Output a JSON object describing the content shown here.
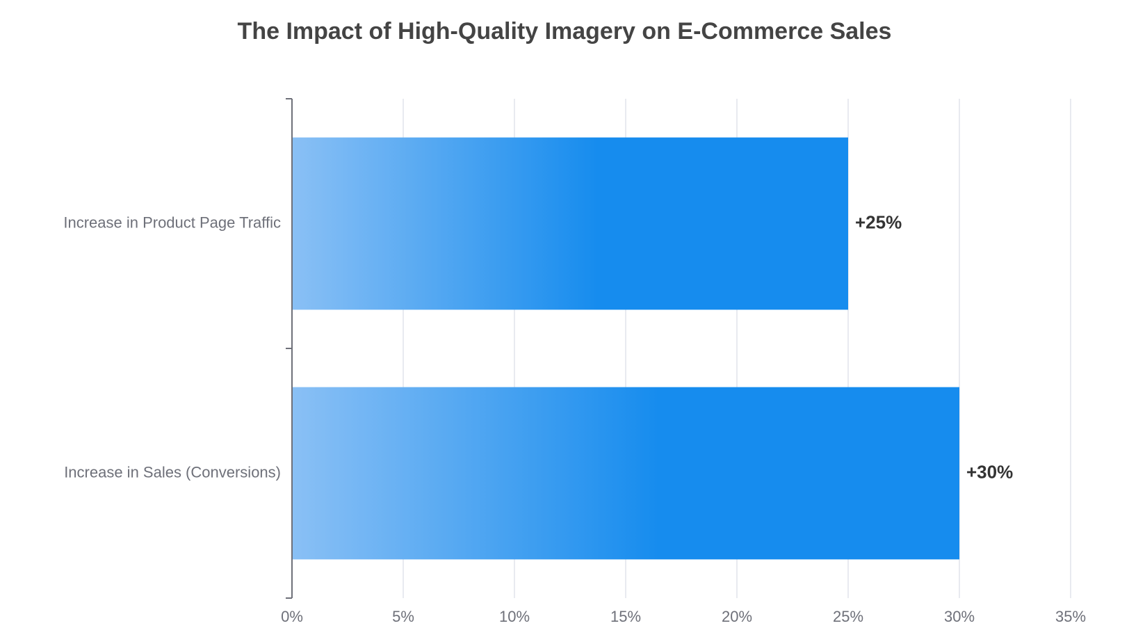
{
  "chart_data": {
    "type": "bar",
    "orientation": "horizontal",
    "title": "The Impact of High-Quality Imagery on E-Commerce Sales",
    "xlabel": "",
    "ylabel": "",
    "categories": [
      "Increase in Product Page Traffic",
      "Increase in Sales (Conversions)"
    ],
    "values": [
      25,
      30
    ],
    "data_labels": [
      "+25%",
      "+30%"
    ],
    "xlim": [
      0,
      35
    ],
    "x_ticks": [
      0,
      5,
      10,
      15,
      20,
      25,
      30,
      35
    ],
    "x_tick_labels": [
      "0%",
      "5%",
      "10%",
      "15%",
      "20%",
      "25%",
      "30%",
      "35%"
    ],
    "grid": "vertical",
    "legend": "none",
    "colors": {
      "bar_gradient_start": "#8ac0f5",
      "bar_gradient_end": "#168cee",
      "grid": "#e0e3ec",
      "axis": "#6e7079"
    }
  }
}
